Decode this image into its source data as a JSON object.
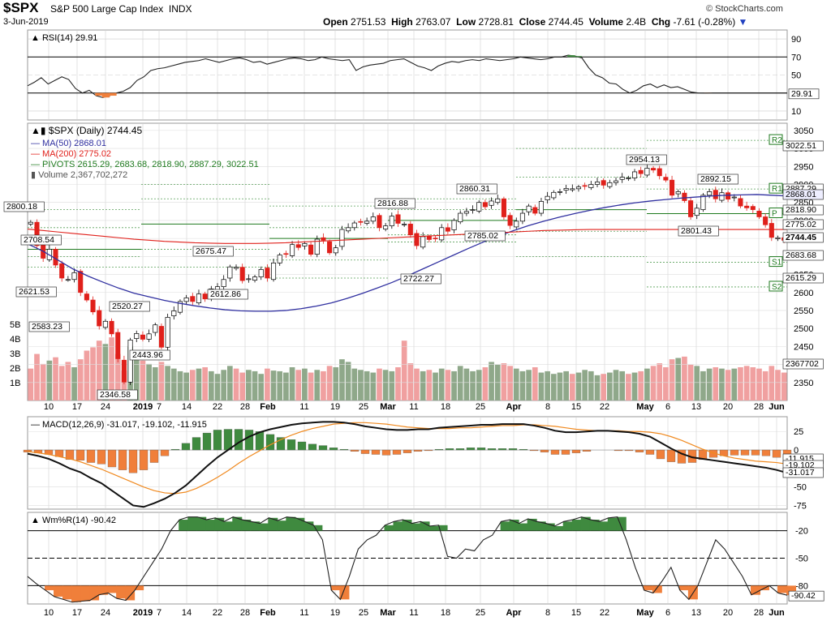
{
  "header": {
    "symbol": "$SPX",
    "name": "S&P 500 Large Cap Index",
    "exchange": "INDX",
    "brand": "© StockCharts.com",
    "date": "3-Jun-2019",
    "open_label": "Open",
    "open": "2751.53",
    "high_label": "High",
    "high": "2763.07",
    "low_label": "Low",
    "low": "2728.81",
    "close_label": "Close",
    "close": "2744.45",
    "volume_label": "Volume",
    "volume": "2.4B",
    "chg_label": "Chg",
    "chg": "-7.61 (-0.28%)"
  },
  "colors": {
    "up": "#ffffff",
    "down": "#e0201b",
    "ma50": "#3030a0",
    "ma200": "#e0201b",
    "pivot": "#1f7a1f",
    "fill_green": "#3f8a3f",
    "fill_orange": "#f07f3a",
    "grid": "#d0d0d0"
  },
  "chart_data": [
    {
      "type": "line",
      "panel": "RSI",
      "legend": "RSI(14) 29.91",
      "last_label": "29.91",
      "yticks": [
        90,
        70,
        50,
        30,
        10
      ],
      "ylim": [
        0,
        100
      ],
      "x": [
        0,
        3,
        6,
        9,
        12,
        15,
        18,
        21,
        24,
        27,
        30,
        33,
        36,
        39,
        42,
        45,
        48,
        51,
        54,
        57,
        60,
        63,
        66,
        69,
        72,
        75,
        78,
        81,
        84,
        87,
        90,
        93,
        96,
        99,
        102,
        105,
        108,
        111,
        114,
        117,
        120,
        123,
        126,
        129,
        132,
        135,
        138,
        141,
        144,
        147,
        150,
        153,
        156,
        159,
        162,
        165,
        168,
        171,
        174,
        177,
        180,
        183,
        186,
        189,
        192,
        195,
        198,
        201,
        204,
        207,
        210,
        213,
        216,
        219,
        222,
        225,
        228,
        231,
        234,
        237,
        240,
        243,
        246,
        249,
        252,
        255,
        258,
        261,
        264,
        267,
        270,
        273,
        276,
        279,
        282,
        285,
        288,
        291,
        294,
        297,
        300,
        303,
        306,
        309,
        312,
        315,
        318,
        321,
        324,
        327,
        330,
        333
      ],
      "values": [
        38,
        42,
        47,
        40,
        44,
        48,
        45,
        35,
        30,
        33,
        27,
        25,
        27,
        30,
        32,
        36,
        44,
        48,
        55,
        57,
        58,
        60,
        62,
        64,
        65,
        66,
        68,
        66,
        64,
        66,
        68,
        69,
        67,
        64,
        65,
        62,
        64,
        66,
        68,
        69,
        68,
        66,
        67,
        70,
        68,
        67,
        66,
        67,
        55,
        59,
        61,
        62,
        63,
        66,
        67,
        68,
        64,
        60,
        58,
        55,
        60,
        63,
        65,
        64,
        66,
        67,
        66,
        68,
        67,
        66,
        67,
        68,
        70,
        69,
        68,
        67,
        68,
        70,
        70,
        72,
        71,
        69,
        58,
        50,
        47,
        41,
        40,
        34,
        30,
        33,
        38,
        40,
        36,
        39,
        36,
        37,
        34,
        31,
        30,
        29.91,
        30,
        30,
        30,
        30,
        30,
        30,
        30,
        30,
        30,
        30,
        30,
        30
      ]
    },
    {
      "type": "candlestick",
      "panel": "Price",
      "title": "$SPX (Daily) 2744.45",
      "legend": [
        "MA(50) 2868.01",
        "MA(200) 2775.02",
        "PIVOTS 2615.29, 2683.68, 2818.90, 2887.29, 3022.51",
        "Volume 2,367,702,272"
      ],
      "ylim": [
        2300,
        3070
      ],
      "yticks": [
        3050,
        3000,
        2950,
        2900,
        2850,
        2800,
        2750,
        2700,
        2650,
        2600,
        2550,
        2500,
        2450,
        2400,
        2350
      ],
      "volume_ticks": [
        "5B",
        "4B",
        "3B",
        "2B",
        "1B"
      ],
      "pivot_labels": [
        "R2",
        "R1",
        "P",
        "S1",
        "S2"
      ],
      "pivot_values": [
        3022.51,
        2887.29,
        2818.9,
        2683.68,
        2615.29
      ],
      "right_labels": [
        "3022.51",
        "2887.29",
        "2868.01",
        "2818.90",
        "2775.02",
        "2744.45",
        "2683.68",
        "2615.29",
        "2367702"
      ],
      "annotations": [
        {
          "text": "2800.18",
          "x": "2018-12-03",
          "y": 2800.18
        },
        {
          "text": "2708.54",
          "x": "2018-12-05",
          "y": 2708.54
        },
        {
          "text": "2621.53",
          "x": "2018-12-07",
          "y": 2621.53
        },
        {
          "text": "2583.23",
          "x": "2018-12-10",
          "y": 2583.23
        },
        {
          "text": "2520.27",
          "x": "2018-12-21",
          "y": 2520.27
        },
        {
          "text": "2443.96",
          "x": "2018-12-26",
          "y": 2443.96
        },
        {
          "text": "2346.58",
          "x": "2018-12-24",
          "y": 2346.58
        },
        {
          "text": "2675.47",
          "x": "2019-01-17",
          "y": 2675.47
        },
        {
          "text": "2612.86",
          "x": "2019-01-22",
          "y": 2612.86
        },
        {
          "text": "2816.88",
          "x": "2019-02-25",
          "y": 2816.88
        },
        {
          "text": "2722.27",
          "x": "2019-03-08",
          "y": 2722.27
        },
        {
          "text": "2860.31",
          "x": "2019-03-21",
          "y": 2860.31
        },
        {
          "text": "2785.02",
          "x": "2019-03-25",
          "y": 2785.02
        },
        {
          "text": "2954.13",
          "x": "2019-05-01",
          "y": 2954.13
        },
        {
          "text": "2892.15",
          "x": "2019-05-17",
          "y": 2892.15
        },
        {
          "text": "2801.43",
          "x": "2019-05-13",
          "y": 2801.43
        }
      ],
      "closes": [
        2795,
        2730,
        2695,
        2720,
        2676,
        2640,
        2636,
        2655,
        2600,
        2579,
        2546,
        2507,
        2520,
        2485,
        2416,
        2351,
        2468,
        2486,
        2470,
        2485,
        2510,
        2448,
        2531,
        2549,
        2575,
        2585,
        2575,
        2596,
        2582,
        2610,
        2616,
        2636,
        2671,
        2670,
        2633,
        2638,
        2643,
        2664,
        2640,
        2682,
        2704,
        2706,
        2733,
        2725,
        2736,
        2706,
        2748,
        2745,
        2710,
        2724,
        2775,
        2780,
        2793,
        2796,
        2798,
        2810,
        2780,
        2785,
        2812,
        2792,
        2790,
        2760,
        2730,
        2755,
        2747,
        2750,
        2780,
        2770,
        2800,
        2820,
        2825,
        2830,
        2850,
        2838,
        2854,
        2860,
        2810,
        2786,
        2798,
        2820,
        2840,
        2820,
        2853,
        2867,
        2878,
        2880,
        2889,
        2888,
        2893,
        2895,
        2900,
        2907,
        2898,
        2905,
        2910,
        2920,
        2918,
        2935,
        2930,
        2945,
        2940,
        2924,
        2912,
        2870,
        2880,
        2855,
        2810,
        2834,
        2870,
        2880,
        2860,
        2877,
        2859,
        2865,
        2840,
        2835,
        2830,
        2810,
        2788,
        2753,
        2752,
        2745
      ]
    },
    {
      "type": "line",
      "panel": "MACD",
      "legend": "MACD(12,26,9) -31.017, -19.102, -11.915",
      "yticks": [
        25,
        0,
        -25,
        -50,
        -75
      ],
      "right_labels": [
        "-11.915",
        "-19.102",
        "-31.017"
      ],
      "series": [
        {
          "name": "MACD",
          "values": [
            -5,
            -8,
            -12,
            -18,
            -25,
            -30,
            -38,
            -45,
            -55,
            -65,
            -75,
            -77,
            -72,
            -66,
            -58,
            -48,
            -35,
            -22,
            -10,
            0,
            10,
            18,
            24,
            28,
            31,
            34,
            36,
            37,
            38,
            38,
            37,
            35,
            32,
            30,
            28,
            27,
            27,
            28,
            28,
            30,
            31,
            32,
            33,
            34,
            34,
            35,
            35,
            35,
            33,
            30,
            26,
            24,
            24,
            25,
            26,
            26,
            25,
            24,
            22,
            18,
            10,
            2,
            -5,
            -10,
            -12,
            -14,
            -16,
            -18,
            -20,
            -22,
            -24,
            -27,
            -31.017
          ]
        },
        {
          "name": "Signal",
          "values": [
            -2,
            -4,
            -6,
            -9,
            -12,
            -16,
            -21,
            -26,
            -32,
            -38,
            -44,
            -50,
            -55,
            -58,
            -59,
            -57,
            -52,
            -45,
            -37,
            -28,
            -18,
            -9,
            -1,
            7,
            14,
            20,
            25,
            29,
            32,
            35,
            36,
            37,
            37,
            36,
            35,
            33,
            31,
            30,
            29,
            29,
            29,
            30,
            30,
            31,
            32,
            33,
            33,
            34,
            34,
            33,
            32,
            30,
            28,
            27,
            26,
            26,
            26,
            25,
            25,
            24,
            22,
            18,
            13,
            7,
            1,
            -4,
            -8,
            -11,
            -13,
            -15,
            -16,
            -17,
            -19.102
          ]
        }
      ]
    },
    {
      "type": "line",
      "panel": "Williams %R",
      "legend": "Wm%R(14) -90.42",
      "yticks": [
        -20,
        -50,
        -80
      ],
      "ylim": [
        -100,
        0
      ],
      "last_label": "-90.42",
      "values": [
        -70,
        -78,
        -85,
        -92,
        -95,
        -98,
        -97,
        -96,
        -90,
        -88,
        -94,
        -96,
        -85,
        -70,
        -55,
        -40,
        -20,
        -8,
        -5,
        -5,
        -8,
        -6,
        -10,
        -5,
        -8,
        -10,
        -12,
        -6,
        -9,
        -5,
        -6,
        -10,
        -14,
        -30,
        -85,
        -95,
        -70,
        -40,
        -30,
        -25,
        -14,
        -10,
        -8,
        -12,
        -10,
        -15,
        -14,
        -48,
        -50,
        -40,
        -42,
        -30,
        -25,
        -10,
        -8,
        -12,
        -7,
        -10,
        -12,
        -15,
        -10,
        -8,
        -5,
        -8,
        -10,
        -6,
        -5,
        -30,
        -60,
        -85,
        -88,
        -75,
        -60,
        -85,
        -95,
        -80,
        -55,
        -30,
        -40,
        -55,
        -70,
        -90,
        -85,
        -80,
        -88,
        -90.42
      ]
    }
  ],
  "xaxis": {
    "labels": [
      "10",
      "17",
      "24",
      "2019",
      "7",
      "14",
      "22",
      "28",
      "Feb",
      "11",
      "19",
      "25",
      "Mar",
      "11",
      "18",
      "25",
      "Apr",
      "8",
      "15",
      "22",
      "May",
      "6",
      "13",
      "20",
      "28",
      "Jun"
    ]
  }
}
